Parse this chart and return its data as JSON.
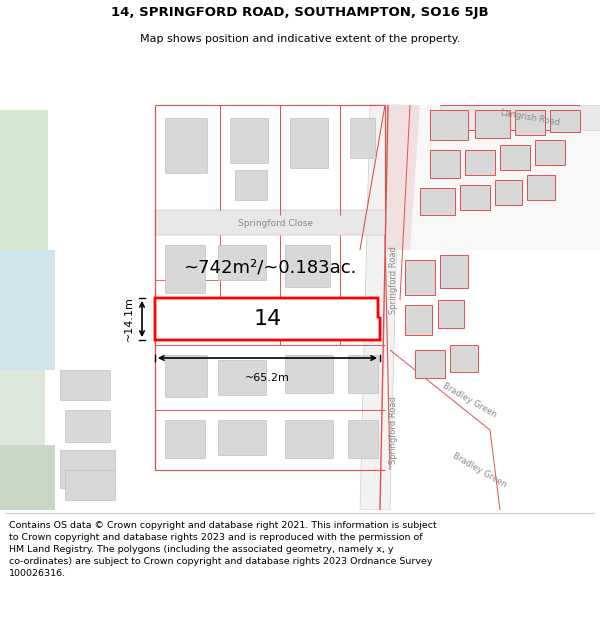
{
  "title": "14, SPRINGFORD ROAD, SOUTHAMPTON, SO16 5JB",
  "subtitle": "Map shows position and indicative extent of the property.",
  "footer_text": "Contains OS data © Crown copyright and database right 2021. This information is subject to Crown copyright and database rights 2023 and is reproduced with the permission of HM Land Registry. The polygons (including the associated geometry, namely x, y co-ordinates) are subject to Crown copyright and database rights 2023 Ordnance Survey 100026316.",
  "label_14": "14",
  "area_text": "~742m²/~0.183ac.",
  "width_text": "~65.2m",
  "height_text": "~14.1m",
  "road_label_springford_close": "Springford Close",
  "road_label_springford_road1": "Springford Road",
  "road_label_springford_road2": "Springford Road",
  "road_label_langrish": "Langrish Road",
  "road_label_bradley_green1": "Bradley Green",
  "road_label_bradley_green2": "Bradley Green",
  "title_fontsize": 9.5,
  "subtitle_fontsize": 8.0,
  "footer_fontsize": 6.8,
  "map_bg": "#f7f7f5",
  "white": "#ffffff",
  "road_pink": "#f0d0d0",
  "road_outline": "#e0a0a0",
  "bldg_fill": "#d8d8d8",
  "bldg_edge": "#c0c0c0",
  "red_line": "#e05050",
  "highlight_red": "#ff0000",
  "gray_road_fill": "#e8e8e8",
  "gray_road_edge": "#c8c8c8",
  "green_patch": "#c8d8c0",
  "blue_patch": "#c8d8e0",
  "label_color": "#888888",
  "dim_color": "#000000"
}
